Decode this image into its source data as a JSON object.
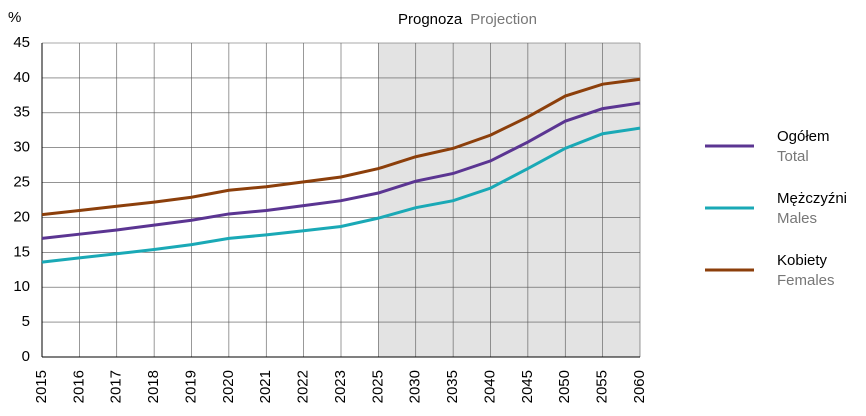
{
  "chart_data": {
    "type": "line",
    "y_unit": "%",
    "projection_label": "Prognoza",
    "projection_label_en": "Projection",
    "projection_from": "2025",
    "categories": [
      "2015",
      "2016",
      "2017",
      "2018",
      "2019",
      "2020",
      "2021",
      "2022",
      "2023",
      "2025",
      "2030",
      "2035",
      "2040",
      "2045",
      "2050",
      "2055",
      "2060"
    ],
    "series": [
      {
        "name": "Ogółem",
        "name_en": "Total",
        "color": "#5b3592",
        "values": [
          17.0,
          17.6,
          18.2,
          18.9,
          19.6,
          20.5,
          21.0,
          21.7,
          22.4,
          23.5,
          25.2,
          26.3,
          28.1,
          30.8,
          33.8,
          35.6,
          36.4
        ]
      },
      {
        "name": "Mężczyźni",
        "name_en": "Males",
        "color": "#1aa9b6",
        "values": [
          13.6,
          14.2,
          14.8,
          15.4,
          16.1,
          17.0,
          17.5,
          18.1,
          18.7,
          19.9,
          21.4,
          22.4,
          24.2,
          27.0,
          29.9,
          32.0,
          32.8
        ]
      },
      {
        "name": "Kobiety",
        "name_en": "Females",
        "color": "#8c3f0b",
        "values": [
          20.4,
          21.0,
          21.6,
          22.2,
          22.9,
          23.9,
          24.4,
          25.1,
          25.8,
          27.0,
          28.7,
          29.9,
          31.8,
          34.4,
          37.4,
          39.1,
          39.8
        ]
      }
    ],
    "ylim": [
      0,
      45
    ],
    "yticks": [
      0,
      5,
      10,
      15,
      20,
      25,
      30,
      35,
      40,
      45
    ],
    "grid": true
  }
}
